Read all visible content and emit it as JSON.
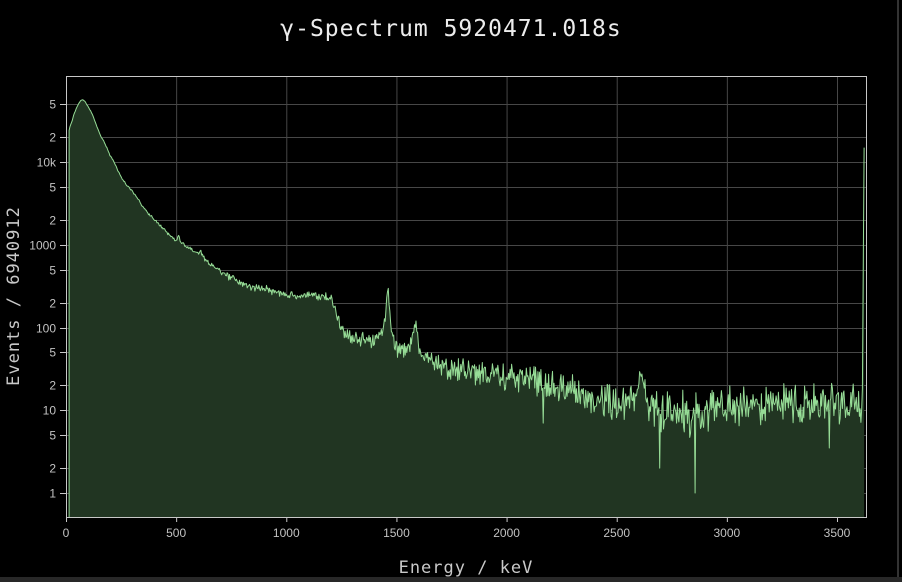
{
  "window": {
    "background": "#000000",
    "bottom_edge_color": "#282828",
    "right_edge_color": "#333333"
  },
  "chart": {
    "title": "γ-Spectrum 5920471.018s",
    "xlabel": "Energy / keV",
    "ylabel": "Events / 6940912",
    "colors": {
      "line": "#96dc96",
      "fill": "#213522",
      "grid": "#474747",
      "frame": "#c7c7c7",
      "tick_label": "#c2c2c2",
      "title_text": "#ececec",
      "axis_label": "#c9c9c9",
      "plot_background": "#000000"
    },
    "x_axis": {
      "min": 0,
      "max": 3640,
      "unit": "keV",
      "ticks": [
        0,
        500,
        1000,
        1500,
        2000,
        2500,
        3000,
        3500
      ]
    },
    "y_axis": {
      "scale": "log",
      "min": 0.51,
      "max": 110000,
      "ticks": [
        {
          "value": 1,
          "label": "1"
        },
        {
          "value": 2,
          "label": "2"
        },
        {
          "value": 5,
          "label": "5"
        },
        {
          "value": 10,
          "label": "10"
        },
        {
          "value": 20,
          "label": "2"
        },
        {
          "value": 50,
          "label": "5"
        },
        {
          "value": 100,
          "label": "100"
        },
        {
          "value": 200,
          "label": "2"
        },
        {
          "value": 500,
          "label": "5"
        },
        {
          "value": 1000,
          "label": "1000"
        },
        {
          "value": 2000,
          "label": "2"
        },
        {
          "value": 5000,
          "label": "5"
        },
        {
          "value": 10000,
          "label": "10k"
        },
        {
          "value": 20000,
          "label": "2"
        },
        {
          "value": 50000,
          "label": "5"
        }
      ]
    }
  },
  "chart_data": {
    "type": "area",
    "title": "γ-Spectrum 5920471.018s",
    "xlabel": "Energy / keV",
    "ylabel": "Events / 6940912",
    "total_events": "6940912",
    "live_time_s": "5920471.018",
    "log_y": true,
    "grid": true,
    "legend": "none",
    "xlim": [
      0,
      3640
    ],
    "ylim": [
      0.51,
      110000
    ],
    "x_data_range_keV": [
      14,
      3623
    ],
    "profile_points": [
      [
        14,
        24000
      ],
      [
        18,
        27000
      ],
      [
        25,
        30000
      ],
      [
        35,
        37000
      ],
      [
        50,
        47000
      ],
      [
        65,
        55000
      ],
      [
        75,
        57000
      ],
      [
        85,
        55000
      ],
      [
        100,
        47000
      ],
      [
        120,
        38000
      ],
      [
        140,
        27000
      ],
      [
        160,
        20000
      ],
      [
        172,
        18000
      ],
      [
        185,
        15000
      ],
      [
        200,
        12000
      ],
      [
        212,
        10800
      ],
      [
        222,
        9600
      ],
      [
        235,
        8000
      ],
      [
        255,
        6300
      ],
      [
        275,
        5300
      ],
      [
        300,
        4500
      ],
      [
        318,
        3800
      ],
      [
        330,
        3500
      ],
      [
        345,
        3000
      ],
      [
        365,
        2550
      ],
      [
        385,
        2250
      ],
      [
        405,
        1950
      ],
      [
        430,
        1700
      ],
      [
        455,
        1450
      ],
      [
        480,
        1250
      ],
      [
        500,
        1120
      ],
      [
        511,
        1300
      ],
      [
        522,
        1050
      ],
      [
        545,
        950
      ],
      [
        575,
        850
      ],
      [
        600,
        800
      ],
      [
        609,
        880
      ],
      [
        622,
        720
      ],
      [
        650,
        600
      ],
      [
        680,
        520
      ],
      [
        705,
        470
      ],
      [
        750,
        400
      ],
      [
        800,
        345
      ],
      [
        850,
        310
      ],
      [
        900,
        287
      ],
      [
        911,
        300
      ],
      [
        925,
        275
      ],
      [
        960,
        262
      ],
      [
        1000,
        250
      ],
      [
        1060,
        244
      ],
      [
        1120,
        240
      ],
      [
        1180,
        236
      ],
      [
        1205,
        228
      ],
      [
        1225,
        160
      ],
      [
        1245,
        105
      ],
      [
        1268,
        88
      ],
      [
        1295,
        78
      ],
      [
        1330,
        70
      ],
      [
        1370,
        67
      ],
      [
        1400,
        72
      ],
      [
        1432,
        85
      ],
      [
        1448,
        115
      ],
      [
        1461,
        340
      ],
      [
        1474,
        115
      ],
      [
        1492,
        62
      ],
      [
        1512,
        50
      ],
      [
        1542,
        52
      ],
      [
        1568,
        66
      ],
      [
        1585,
        125
      ],
      [
        1602,
        60
      ],
      [
        1625,
        46
      ],
      [
        1650,
        40
      ],
      [
        1700,
        34
      ],
      [
        1760,
        31
      ],
      [
        1820,
        29
      ],
      [
        1880,
        27
      ],
      [
        1940,
        26
      ],
      [
        2000,
        25
      ],
      [
        2060,
        24
      ],
      [
        2120,
        23
      ],
      [
        2180,
        21
      ],
      [
        2240,
        19
      ],
      [
        2300,
        17
      ],
      [
        2360,
        15
      ],
      [
        2420,
        13
      ],
      [
        2480,
        11.5
      ],
      [
        2540,
        11
      ],
      [
        2590,
        14
      ],
      [
        2614,
        26
      ],
      [
        2640,
        11
      ],
      [
        2700,
        10
      ],
      [
        2760,
        9.5
      ],
      [
        2820,
        9
      ],
      [
        2880,
        9
      ],
      [
        2940,
        10
      ],
      [
        3000,
        11
      ],
      [
        3100,
        12
      ],
      [
        3200,
        12
      ],
      [
        3300,
        11.5
      ],
      [
        3400,
        12
      ],
      [
        3500,
        12
      ],
      [
        3618,
        12
      ]
    ],
    "notable_peaks": [
      {
        "energy_keV": 75,
        "counts": 57000,
        "note": "continuum maximum"
      },
      {
        "energy_keV": 511,
        "counts": 1300,
        "note": "small bump"
      },
      {
        "energy_keV": 1461,
        "counts": 340,
        "note": "prominent narrow peak"
      },
      {
        "energy_keV": 1585,
        "counts": 125,
        "note": "secondary narrow peak"
      },
      {
        "energy_keV": 2614,
        "counts": 26,
        "note": "small bump"
      }
    ],
    "compton_edge_drop_keV": [
      1205,
      1245
    ],
    "deep_dips": [
      [
        2165,
        7
      ],
      [
        2696,
        2
      ],
      [
        2857,
        1
      ],
      [
        3464,
        3.5
      ]
    ],
    "overflow_spike": {
      "energy_keV": 3623,
      "counts": 15000
    },
    "noise": {
      "model": "poisson-like multiplicative jitter",
      "amplitude": 2.2
    }
  }
}
